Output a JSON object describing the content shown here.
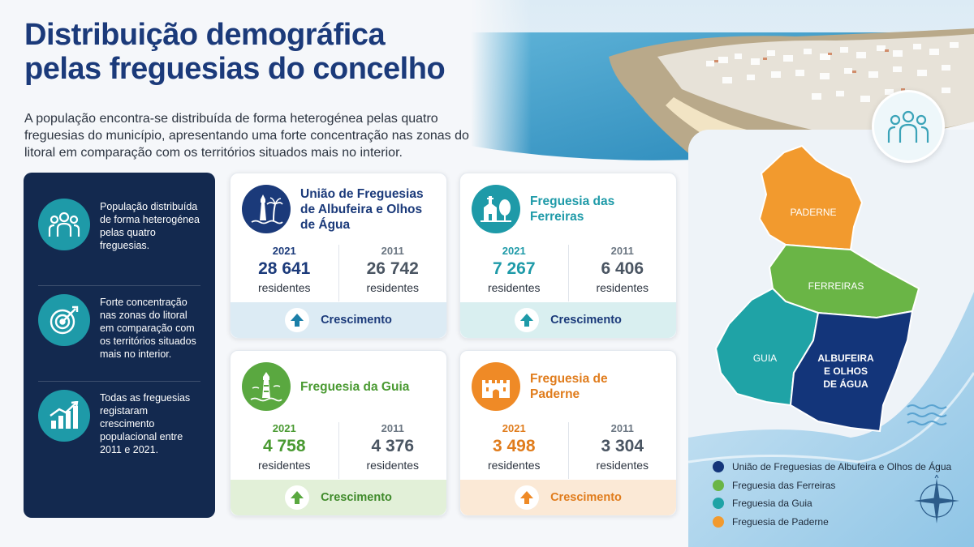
{
  "header": {
    "title_line1": "Distribuição demográfica",
    "title_line2": "pelas freguesias do concelho",
    "subtitle": "A população encontra-se distribuída de forma heterogénea pelas quatro freguesias do município, apresentando uma forte concentração nas zonas do litoral em comparação com os territórios situados mais no interior."
  },
  "highlights": [
    {
      "icon": "people-group-icon",
      "text": "População distribuída de forma heterogénea pelas quatro freguesias."
    },
    {
      "icon": "target-icon",
      "text": "Forte concentração nas zonas do litoral em comparação com os territórios situados mais no interior."
    },
    {
      "icon": "growth-chart-icon",
      "text": "Todas as freguesias registaram crescimento populacional entre 2011 e 2021."
    }
  ],
  "parishes": [
    {
      "name": "União de Freguesias de Albufeira e Olhos de Água",
      "icon": "lighthouse-palm-icon",
      "color": "#1b3a7a",
      "year_new": "2021",
      "value_new": "28 641",
      "unit_new": "residentes",
      "year_old": "2011",
      "value_old": "26 742",
      "unit_old": "residentes",
      "trend": "Crescimento"
    },
    {
      "name": "Freguesia das Ferreiras",
      "icon": "church-tree-icon",
      "color": "#1e9aa8",
      "year_new": "2021",
      "value_new": "7 267",
      "unit_new": "residentes",
      "year_old": "2011",
      "value_old": "6 406",
      "unit_old": "residentes",
      "trend": "Crescimento"
    },
    {
      "name": "Freguesia da Guia",
      "icon": "lighthouse-icon",
      "color": "#5aa840",
      "year_new": "2021",
      "value_new": "4 758",
      "unit_new": "residentes",
      "year_old": "2011",
      "value_old": "4 376",
      "unit_old": "residentes",
      "trend": "Crescimento"
    },
    {
      "name": "Freguesia de Paderne",
      "icon": "castle-icon",
      "color": "#ef8a26",
      "year_new": "2021",
      "value_new": "3 498",
      "unit_new": "residentes",
      "year_old": "2011",
      "value_old": "3 304",
      "unit_old": "residentes",
      "trend": "Crescimento"
    }
  ],
  "map": {
    "labels": {
      "paderne": "PADERNE",
      "ferreiras": "FERREIRAS",
      "guia": "GUIA",
      "albufeira": "ALBUFEIRA E OLHOS DE ÁGUA"
    },
    "colors": {
      "albufeira": "#13357a",
      "ferreiras": "#6ab546",
      "guia": "#1fa3a6",
      "paderne": "#f29a2e"
    },
    "legend": [
      {
        "label": "União de Freguesias de Albufeira e Olhos de Água",
        "color": "#13357a"
      },
      {
        "label": "Freguesia das Ferreiras",
        "color": "#6ab546"
      },
      {
        "label": "Freguesia da Guia",
        "color": "#1fa3a6"
      },
      {
        "label": "Freguesia de Paderne",
        "color": "#f29a2e"
      }
    ]
  }
}
